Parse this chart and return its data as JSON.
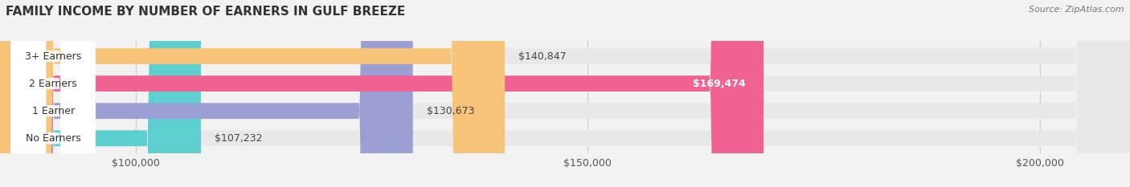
{
  "title": "FAMILY INCOME BY NUMBER OF EARNERS IN GULF BREEZE",
  "source": "Source: ZipAtlas.com",
  "categories": [
    "No Earners",
    "1 Earner",
    "2 Earners",
    "3+ Earners"
  ],
  "values": [
    107232,
    130673,
    169474,
    140847
  ],
  "bar_colors": [
    "#5ecfcf",
    "#9b9fd4",
    "#f06292",
    "#f7c47a"
  ],
  "value_inside": [
    false,
    false,
    true,
    false
  ],
  "xlim": [
    85000,
    210000
  ],
  "xticks": [
    100000,
    150000,
    200000
  ],
  "xtick_labels": [
    "$100,000",
    "$150,000",
    "$200,000"
  ],
  "background_color": "#f2f2f2",
  "bar_background_color": "#e8e8e8",
  "title_fontsize": 11,
  "label_fontsize": 9,
  "value_fontsize": 9
}
